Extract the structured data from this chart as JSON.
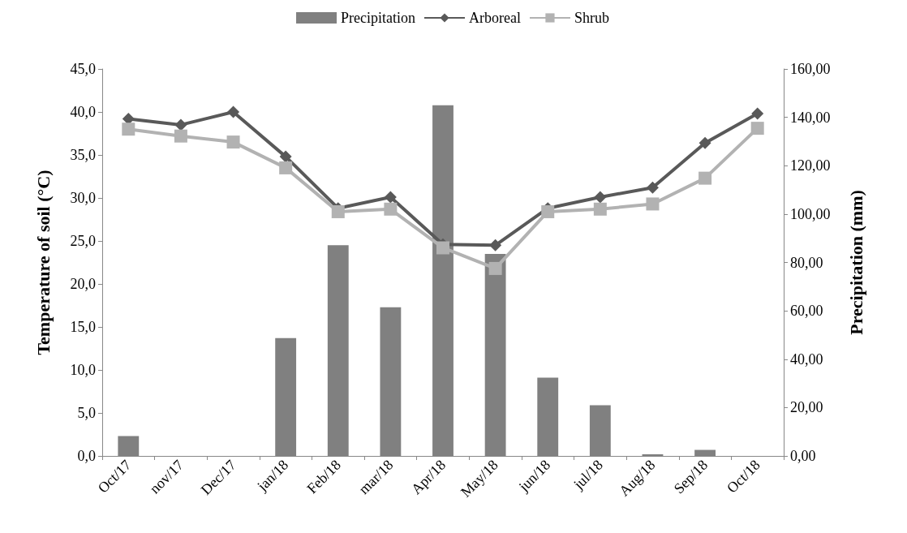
{
  "chart_data": {
    "type": "line",
    "ylabel": "Temperature of soil (°C)",
    "y2label": "Precipitation (mm)",
    "categories": [
      "Oct/17",
      "nov/17",
      "Dec/17",
      "jan/18",
      "Feb/18",
      "mar/18",
      "Apr/18",
      "May/18",
      "jun/18",
      "jul/18",
      "Aug/18",
      "Sep/18",
      "Oct/18"
    ],
    "series": [
      {
        "name": "Precipitation",
        "type": "bar",
        "axis": "y2",
        "color": "#808080",
        "values": [
          8.2,
          0,
          0,
          48.7,
          87.1,
          61.5,
          145,
          83.5,
          32.4,
          21,
          0.7,
          2.5,
          0
        ]
      },
      {
        "name": "Arboreal",
        "marker": "diamond",
        "color": "#595959",
        "values": [
          39.2,
          38.5,
          40.0,
          34.8,
          28.8,
          30.1,
          24.6,
          24.5,
          28.8,
          30.1,
          31.2,
          36.4,
          39.8
        ]
      },
      {
        "name": "Shrub",
        "marker": "square",
        "color": "#b2b2b2",
        "values": [
          38.0,
          37.2,
          36.5,
          33.5,
          28.4,
          28.7,
          24.2,
          21.8,
          28.4,
          28.7,
          29.3,
          32.3,
          38.1
        ]
      }
    ],
    "ylim": [
      0,
      45
    ],
    "yticks": [
      {
        "value": 0,
        "label": "0,0"
      },
      {
        "value": 5,
        "label": "5,0"
      },
      {
        "value": 10,
        "label": "10,0"
      },
      {
        "value": 15,
        "label": "15,0"
      },
      {
        "value": 20,
        "label": "20,0"
      },
      {
        "value": 25,
        "label": "25,0"
      },
      {
        "value": 30,
        "label": "30,0"
      },
      {
        "value": 35,
        "label": "35,0"
      },
      {
        "value": 40,
        "label": "40,0"
      },
      {
        "value": 45,
        "label": "45,0"
      }
    ],
    "y2lim": [
      0,
      160
    ],
    "y2ticks": [
      {
        "value": 0,
        "label": "0,00"
      },
      {
        "value": 20,
        "label": "20,00"
      },
      {
        "value": 40,
        "label": "40,00"
      },
      {
        "value": 60,
        "label": "60,00"
      },
      {
        "value": 80,
        "label": "80,00"
      },
      {
        "value": 100,
        "label": "100,00"
      },
      {
        "value": 120,
        "label": "120,00"
      },
      {
        "value": 140,
        "label": "140,00"
      },
      {
        "value": 160,
        "label": "160,00"
      }
    ],
    "grid": false,
    "legend": "top"
  }
}
